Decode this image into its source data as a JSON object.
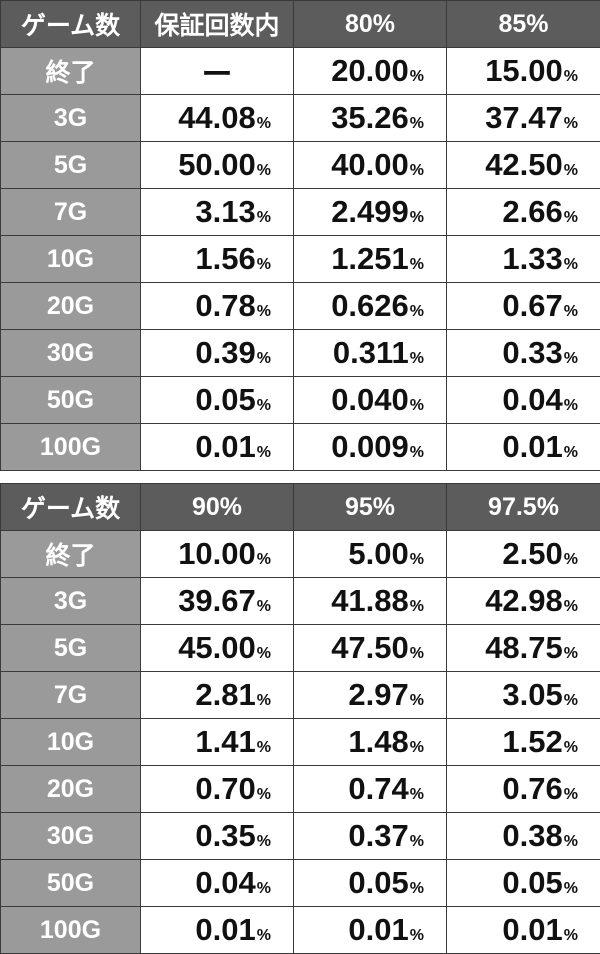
{
  "tables": [
    {
      "headers": [
        "ゲーム数",
        "保証回数内",
        "80%",
        "85%"
      ],
      "rows": [
        {
          "label": "終了",
          "values": [
            "ー",
            "20.00",
            "15.00"
          ]
        },
        {
          "label": "3G",
          "values": [
            "44.08",
            "35.26",
            "37.47"
          ]
        },
        {
          "label": "5G",
          "values": [
            "50.00",
            "40.00",
            "42.50"
          ]
        },
        {
          "label": "7G",
          "values": [
            "3.13",
            "2.499",
            "2.66"
          ]
        },
        {
          "label": "10G",
          "values": [
            "1.56",
            "1.251",
            "1.33"
          ]
        },
        {
          "label": "20G",
          "values": [
            "0.78",
            "0.626",
            "0.67"
          ]
        },
        {
          "label": "30G",
          "values": [
            "0.39",
            "0.311",
            "0.33"
          ]
        },
        {
          "label": "50G",
          "values": [
            "0.05",
            "0.040",
            "0.04"
          ]
        },
        {
          "label": "100G",
          "values": [
            "0.01",
            "0.009",
            "0.01"
          ]
        }
      ]
    },
    {
      "headers": [
        "ゲーム数",
        "90%",
        "95%",
        "97.5%"
      ],
      "rows": [
        {
          "label": "終了",
          "values": [
            "10.00",
            "5.00",
            "2.50"
          ]
        },
        {
          "label": "3G",
          "values": [
            "39.67",
            "41.88",
            "42.98"
          ]
        },
        {
          "label": "5G",
          "values": [
            "45.00",
            "47.50",
            "48.75"
          ]
        },
        {
          "label": "7G",
          "values": [
            "2.81",
            "2.97",
            "3.05"
          ]
        },
        {
          "label": "10G",
          "values": [
            "1.41",
            "1.48",
            "1.52"
          ]
        },
        {
          "label": "20G",
          "values": [
            "0.70",
            "0.74",
            "0.76"
          ]
        },
        {
          "label": "30G",
          "values": [
            "0.35",
            "0.37",
            "0.38"
          ]
        },
        {
          "label": "50G",
          "values": [
            "0.04",
            "0.05",
            "0.05"
          ]
        },
        {
          "label": "100G",
          "values": [
            "0.01",
            "0.01",
            "0.01"
          ]
        }
      ]
    }
  ],
  "unit": "%",
  "colors": {
    "header_bg": "#5c5c5c",
    "row_header_bg": "#9a9a9a",
    "border": "#3a3a3a"
  }
}
